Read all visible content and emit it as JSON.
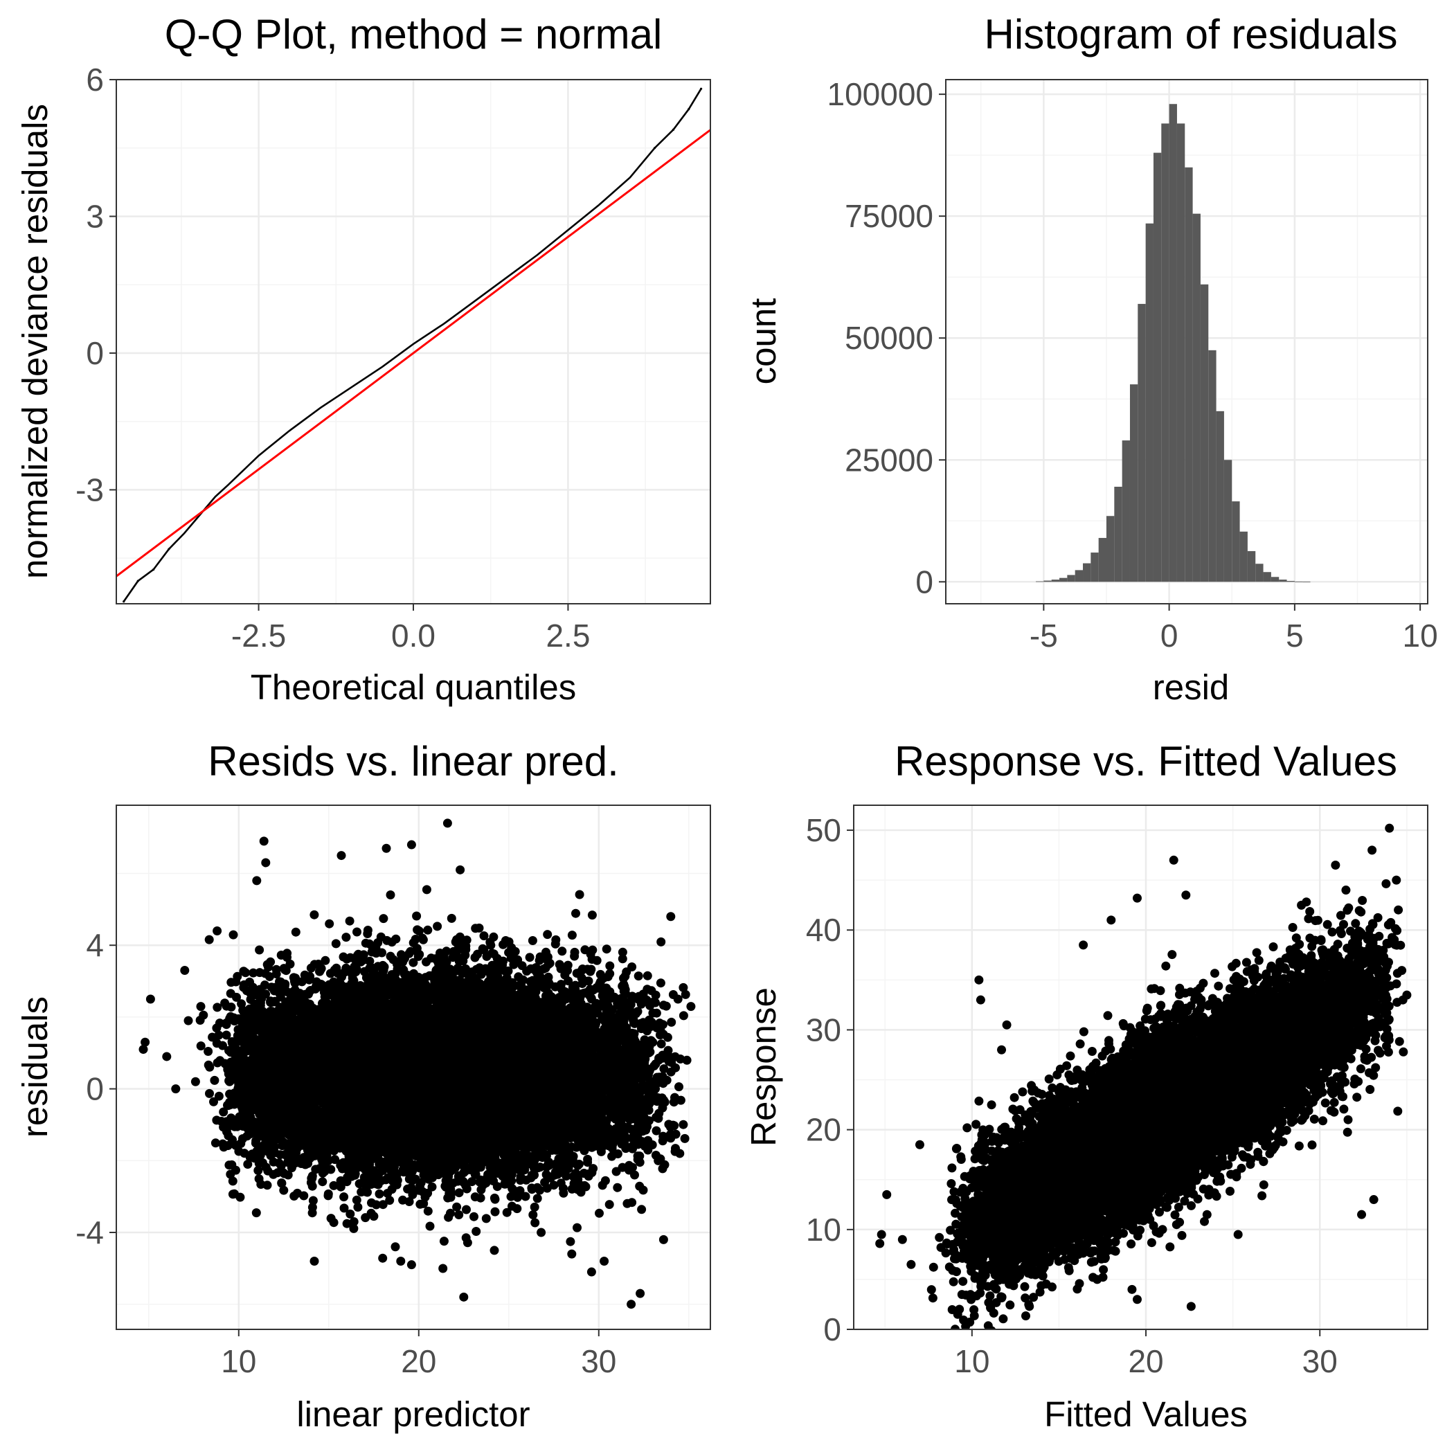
{
  "figure": {
    "background": "#ffffff",
    "panel_border": "#333333",
    "grid_major": "#ebebeb",
    "grid_minor": "#f4f4f4"
  },
  "chart_data": [
    {
      "id": "qq",
      "type": "scatter",
      "title": "Q-Q Plot, method = normal",
      "xlabel": "Theoretical quantiles",
      "ylabel": "normalized deviance residuals",
      "xlim": [
        -4.8,
        4.8
      ],
      "ylim": [
        -5.5,
        6.0
      ],
      "xticks": [
        -2.5,
        0.0,
        2.5
      ],
      "xtick_labels": [
        "-2.5",
        "0.0",
        "2.5"
      ],
      "yticks": [
        -3,
        0,
        3,
        6
      ],
      "ytick_labels": [
        "-3",
        "0",
        "3",
        "6"
      ],
      "sample_points": [
        [
          -4.68,
          -5.45
        ],
        [
          -4.45,
          -5.0
        ],
        [
          -4.2,
          -4.75
        ],
        [
          -3.95,
          -4.3
        ],
        [
          -3.7,
          -3.95
        ],
        [
          -3.45,
          -3.55
        ],
        [
          -3.2,
          -3.15
        ],
        [
          -3.0,
          -2.9
        ],
        [
          -2.5,
          -2.25
        ],
        [
          -2.0,
          -1.7
        ],
        [
          -1.5,
          -1.2
        ],
        [
          -1.0,
          -0.75
        ],
        [
          -0.5,
          -0.3
        ],
        [
          0.0,
          0.2
        ],
        [
          0.5,
          0.65
        ],
        [
          1.0,
          1.15
        ],
        [
          1.5,
          1.65
        ],
        [
          2.0,
          2.15
        ],
        [
          2.5,
          2.7
        ],
        [
          3.0,
          3.25
        ],
        [
          3.5,
          3.85
        ],
        [
          3.9,
          4.5
        ],
        [
          4.2,
          4.9
        ],
        [
          4.45,
          5.35
        ],
        [
          4.65,
          5.8
        ]
      ],
      "reference_line": {
        "color": "#ff0000",
        "intercept": 0.0,
        "slope": 1.02
      },
      "point_color": "#000000"
    },
    {
      "id": "hist",
      "type": "bar",
      "title": "Histogram of residuals",
      "xlabel": "resid",
      "ylabel": "count",
      "xlim": [
        -8.9,
        10.3
      ],
      "ylim": [
        -4500,
        103000
      ],
      "xticks": [
        -5,
        0,
        5,
        10
      ],
      "xtick_labels": [
        "-5",
        "0",
        "5",
        "10"
      ],
      "yticks": [
        0,
        25000,
        50000,
        75000,
        100000
      ],
      "ytick_labels": [
        "0",
        "25000",
        "50000",
        "75000",
        "100000"
      ],
      "bin_width": 0.3125,
      "bin_start": -5.3125,
      "counts": [
        100,
        250,
        450,
        800,
        1400,
        2400,
        3800,
        6000,
        9000,
        13500,
        19500,
        29000,
        40500,
        57000,
        73500,
        88000,
        94000,
        98000,
        94000,
        85000,
        75500,
        61000,
        47500,
        35000,
        25000,
        16500,
        10300,
        6300,
        3700,
        2000,
        1000,
        450,
        180,
        60,
        20
      ],
      "bar_color": "#595959"
    },
    {
      "id": "resid-vs-lp",
      "type": "scatter",
      "title": "Resids vs. linear pred.",
      "xlabel": "linear predictor",
      "ylabel": "residuals",
      "xlim": [
        3.2,
        36.2
      ],
      "ylim": [
        -6.7,
        7.9
      ],
      "xticks": [
        10,
        20,
        30
      ],
      "xtick_labels": [
        "10",
        "20",
        "30"
      ],
      "yticks": [
        -4,
        0,
        4
      ],
      "ytick_labels": [
        "-4",
        "0",
        "4"
      ],
      "cloud": {
        "x_range": [
          8.5,
          34.5
        ],
        "x_mode": 20,
        "y_center": 0.45,
        "y_sd": 1.3,
        "n": 14000
      },
      "outliers": [
        [
          4.7,
          1.1
        ],
        [
          4.8,
          1.3
        ],
        [
          5.1,
          2.5
        ],
        [
          6.0,
          0.9
        ],
        [
          6.5,
          0.0
        ],
        [
          7.0,
          3.3
        ],
        [
          7.2,
          1.9
        ],
        [
          7.6,
          0.2
        ],
        [
          8.8,
          4.4
        ],
        [
          11.4,
          6.9
        ],
        [
          11.5,
          6.3
        ],
        [
          11.0,
          5.8
        ],
        [
          15.7,
          6.5
        ],
        [
          18.2,
          6.7
        ],
        [
          19.6,
          6.8
        ],
        [
          21.6,
          7.4
        ],
        [
          22.3,
          6.1
        ],
        [
          20.2,
          4.2
        ],
        [
          24.0,
          4.0
        ],
        [
          18.7,
          -4.4
        ],
        [
          19.0,
          -4.8
        ],
        [
          19.6,
          -4.9
        ],
        [
          22.5,
          -5.8
        ],
        [
          24.2,
          -4.5
        ],
        [
          29.6,
          -5.1
        ],
        [
          31.8,
          -6.0
        ],
        [
          32.3,
          -5.7
        ],
        [
          33.6,
          -4.2
        ],
        [
          34.0,
          4.8
        ],
        [
          34.4,
          2.5
        ],
        [
          14.1,
          -3.3
        ],
        [
          10.5,
          -2.1
        ],
        [
          16.4,
          -3.7
        ],
        [
          26.8,
          -4.0
        ],
        [
          28.5,
          -4.6
        ],
        [
          30.3,
          -4.8
        ],
        [
          34.5,
          -1.8
        ]
      ],
      "point_color": "#000000"
    },
    {
      "id": "response-vs-fitted",
      "type": "scatter",
      "title": "Response vs. Fitted Values",
      "xlabel": "Fitted Values",
      "ylabel": "Response",
      "xlim": [
        3.2,
        36.2
      ],
      "ylim": [
        0,
        52.5
      ],
      "xticks": [
        10,
        20,
        30
      ],
      "xtick_labels": [
        "10",
        "20",
        "30"
      ],
      "yticks": [
        0,
        10,
        20,
        30,
        40,
        50
      ],
      "ytick_labels": [
        "0",
        "10",
        "20",
        "30",
        "40",
        "50"
      ],
      "cloud": {
        "x_range": [
          8.5,
          34.5
        ],
        "x_mode": 20,
        "y_offset": 0.45,
        "y_sd": 3.8,
        "n": 14000
      },
      "outliers": [
        [
          4.7,
          8.6
        ],
        [
          4.8,
          9.5
        ],
        [
          5.1,
          13.5
        ],
        [
          6.0,
          9.0
        ],
        [
          6.5,
          6.5
        ],
        [
          7.0,
          18.5
        ],
        [
          10.4,
          35.0
        ],
        [
          10.5,
          33.0
        ],
        [
          11.7,
          28.0
        ],
        [
          12.0,
          30.5
        ],
        [
          16.4,
          38.5
        ],
        [
          18.0,
          41.0
        ],
        [
          19.5,
          43.2
        ],
        [
          21.6,
          47.0
        ],
        [
          22.3,
          43.5
        ],
        [
          22.6,
          2.3
        ],
        [
          19.5,
          3.0
        ],
        [
          19.2,
          4.0
        ],
        [
          13.3,
          2.3
        ],
        [
          32.4,
          11.5
        ],
        [
          33.1,
          13.0
        ],
        [
          34.0,
          50.2
        ],
        [
          34.4,
          45.0
        ],
        [
          31.5,
          44.0
        ],
        [
          30.9,
          46.5
        ],
        [
          33.0,
          48.0
        ],
        [
          25.3,
          9.5
        ],
        [
          17.2,
          5.0
        ],
        [
          28.5,
          21.8
        ]
      ],
      "point_color": "#000000"
    }
  ]
}
